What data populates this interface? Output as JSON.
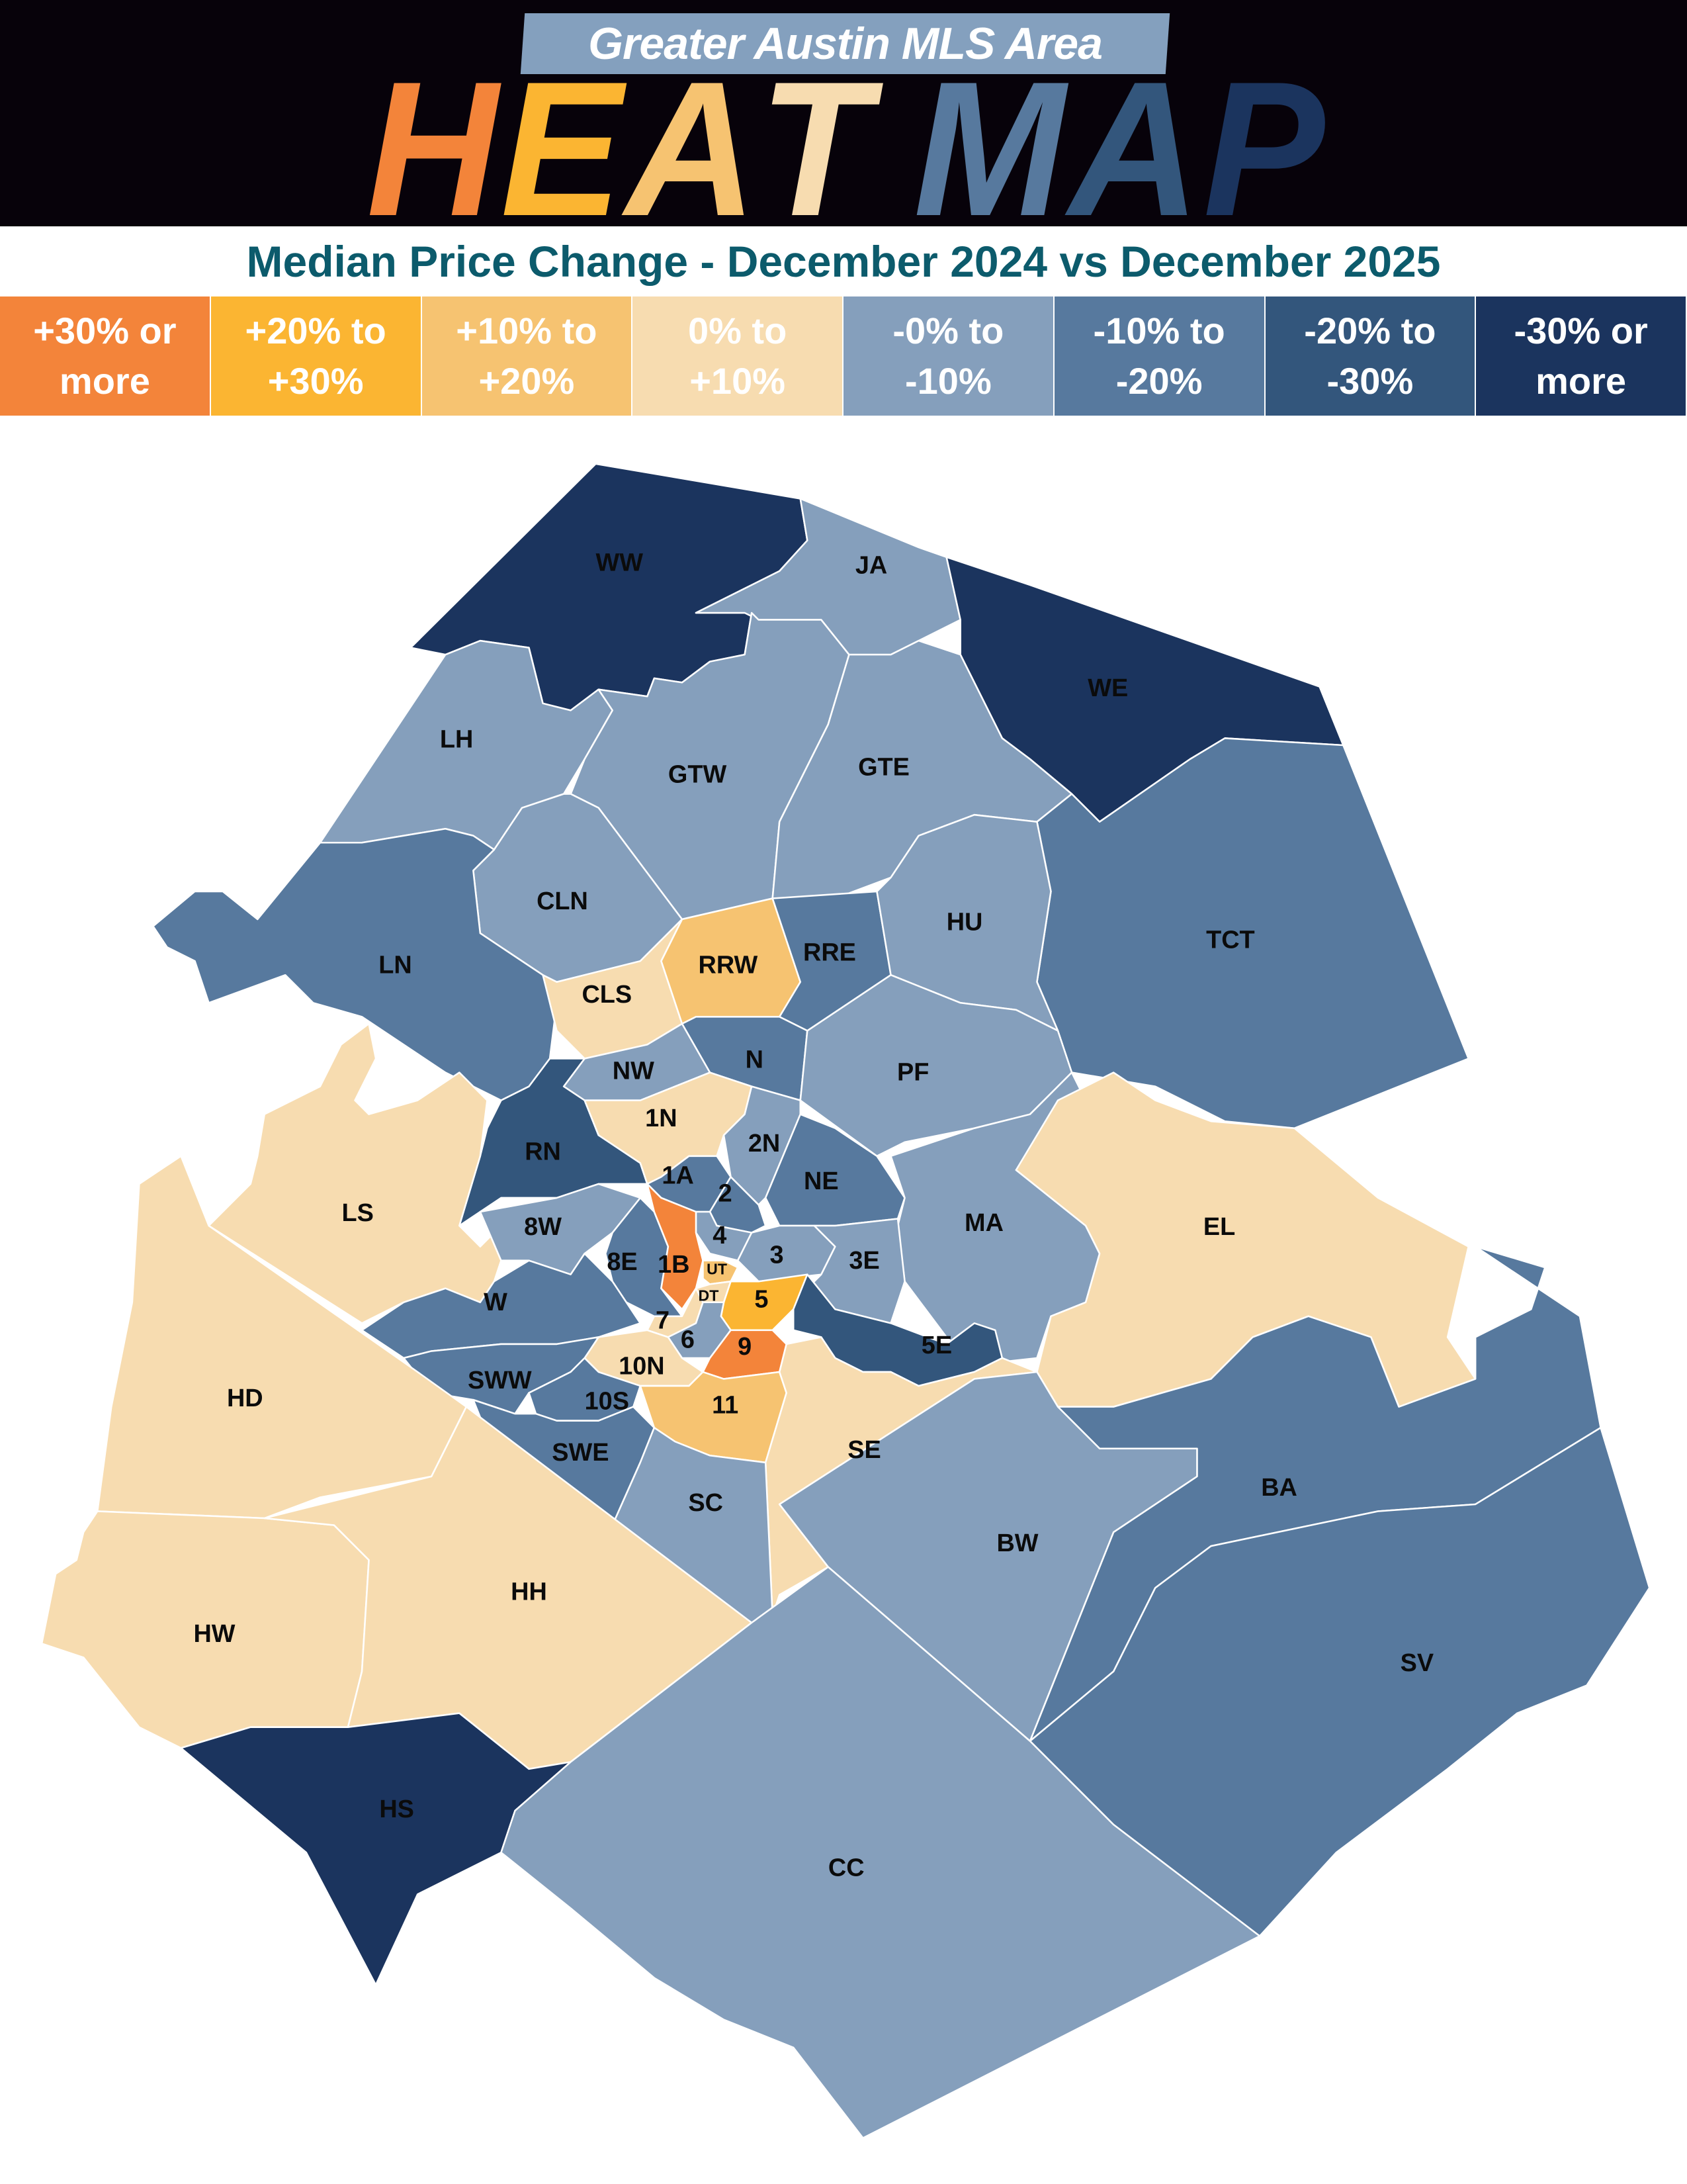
{
  "header": {
    "title": "Greater Austin MLS Area",
    "heat_letters": [
      "H",
      "E",
      "A",
      "T"
    ],
    "map_letters": [
      "M",
      "A",
      "P"
    ],
    "heat_colors": [
      "#F3843A",
      "#FBB532",
      "#F6C371",
      "#F7DCB0"
    ],
    "map_colors": [
      "#57799E",
      "#33567C",
      "#1B345E"
    ]
  },
  "chart_data": {
    "type": "choropleth",
    "title": "Median Price Change - December 2024 vs December 2025",
    "legend": [
      {
        "label_line1": "+30% or",
        "label_line2": "more",
        "color": "#F3843A"
      },
      {
        "label_line1": "+20% to",
        "label_line2": "+30%",
        "color": "#FBB532"
      },
      {
        "label_line1": "+10% to",
        "label_line2": "+20%",
        "color": "#F6C371"
      },
      {
        "label_line1": "0% to",
        "label_line2": "+10%",
        "color": "#F7DCB0"
      },
      {
        "label_line1": "-0% to",
        "label_line2": "-10%",
        "color": "#859FBC"
      },
      {
        "label_line1": "-10% to",
        "label_line2": "-20%",
        "color": "#57799E"
      },
      {
        "label_line1": "-20% to",
        "label_line2": "-30%",
        "color": "#33567C"
      },
      {
        "label_line1": "-30% or",
        "label_line2": "more",
        "color": "#1B345E"
      }
    ],
    "regions": [
      {
        "label": "WW",
        "category": 7
      },
      {
        "label": "JA",
        "category": 4
      },
      {
        "label": "WE",
        "category": 7
      },
      {
        "label": "LH",
        "category": 4
      },
      {
        "label": "GTW",
        "category": 4
      },
      {
        "label": "GTE",
        "category": 4
      },
      {
        "label": "TCT",
        "category": 5
      },
      {
        "label": "CLN",
        "category": 4
      },
      {
        "label": "LN",
        "category": 5
      },
      {
        "label": "RRW",
        "category": 2
      },
      {
        "label": "RRE",
        "category": 5
      },
      {
        "label": "HU",
        "category": 4
      },
      {
        "label": "CLS",
        "category": 3
      },
      {
        "label": "N",
        "category": 5
      },
      {
        "label": "NW",
        "category": 4
      },
      {
        "label": "PF",
        "category": 4
      },
      {
        "label": "RN",
        "category": 6
      },
      {
        "label": "1N",
        "category": 3
      },
      {
        "label": "LS",
        "category": 3
      },
      {
        "label": "2N",
        "category": 4
      },
      {
        "label": "1A",
        "category": 5
      },
      {
        "label": "2",
        "category": 5
      },
      {
        "label": "NE",
        "category": 5
      },
      {
        "label": "MA",
        "category": 4
      },
      {
        "label": "EL",
        "category": 3
      },
      {
        "label": "8W",
        "category": 4
      },
      {
        "label": "4",
        "category": 4
      },
      {
        "label": "3",
        "category": 4
      },
      {
        "label": "3E",
        "category": 4
      },
      {
        "label": "8E",
        "category": 5
      },
      {
        "label": "1B",
        "category": 0
      },
      {
        "label": "UT",
        "category": 2
      },
      {
        "label": "DT",
        "category": 3
      },
      {
        "label": "5",
        "category": 1
      },
      {
        "label": "5E",
        "category": 6
      },
      {
        "label": "W",
        "category": 5
      },
      {
        "label": "7",
        "category": 3
      },
      {
        "label": "6",
        "category": 4
      },
      {
        "label": "9",
        "category": 0
      },
      {
        "label": "10N",
        "category": 3
      },
      {
        "label": "SWW",
        "category": 5
      },
      {
        "label": "10S",
        "category": 5
      },
      {
        "label": "11",
        "category": 2
      },
      {
        "label": "HD",
        "category": 3
      },
      {
        "label": "SWE",
        "category": 5
      },
      {
        "label": "SE",
        "category": 3
      },
      {
        "label": "SC",
        "category": 4
      },
      {
        "label": "BA",
        "category": 5
      },
      {
        "label": "BW",
        "category": 4
      },
      {
        "label": "HW",
        "category": 3
      },
      {
        "label": "HH",
        "category": 3
      },
      {
        "label": "SV",
        "category": 5
      },
      {
        "label": "HS",
        "category": 7
      },
      {
        "label": "CC",
        "category": 4
      }
    ]
  }
}
